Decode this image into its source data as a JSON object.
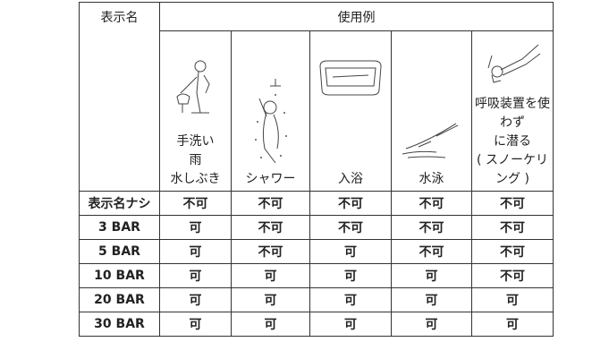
{
  "header": {
    "name_column": "表示名",
    "usage_column": "使用例"
  },
  "usages": [
    {
      "lines": [
        "手洗い",
        "雨",
        "水しぶき"
      ]
    },
    {
      "lines": [
        "シャワー"
      ]
    },
    {
      "lines": [
        "入浴"
      ]
    },
    {
      "lines": [
        "水泳"
      ]
    },
    {
      "lines": [
        "呼吸装置を使",
        "わず",
        "に潜る",
        "( スノーケリ",
        "ング )"
      ]
    }
  ],
  "rows": [
    {
      "label": "表示名ナシ",
      "cells": [
        "不可",
        "不可",
        "不可",
        "不可",
        "不可"
      ]
    },
    {
      "label": "3 BAR",
      "cells": [
        "可",
        "不可",
        "不可",
        "不可",
        "不可"
      ]
    },
    {
      "label": "5 BAR",
      "cells": [
        "可",
        "不可",
        "可",
        "不可",
        "不可"
      ]
    },
    {
      "label": "10 BAR",
      "cells": [
        "可",
        "可",
        "可",
        "可",
        "不可"
      ]
    },
    {
      "label": "20 BAR",
      "cells": [
        "可",
        "可",
        "可",
        "可",
        "可"
      ]
    },
    {
      "label": "30 BAR",
      "cells": [
        "可",
        "可",
        "可",
        "可",
        "可"
      ]
    }
  ]
}
